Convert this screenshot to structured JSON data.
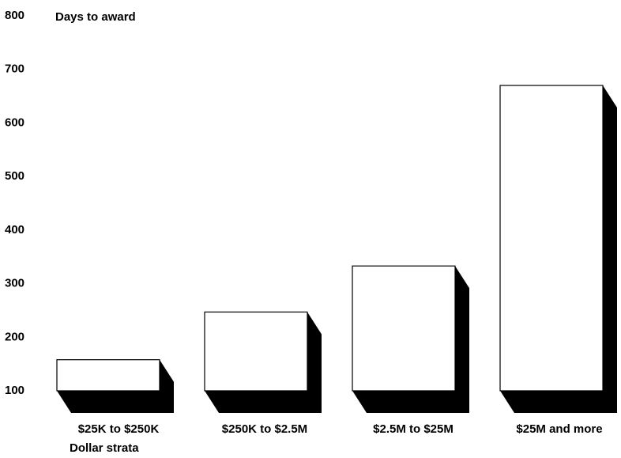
{
  "chart_data": {
    "type": "bar",
    "ylabel": "Days to award",
    "xlabel": "Dollar strata",
    "categories": [
      "$25K to $250K",
      "$250K to $2.5M",
      "$2.5M to $25M",
      "$25M and more"
    ],
    "values": [
      158,
      247,
      333,
      670
    ],
    "ylim": [
      100,
      800
    ],
    "yticks": [
      100,
      200,
      300,
      400,
      500,
      600,
      700,
      800
    ],
    "grid": false,
    "style": "3d-shadow",
    "colors": {
      "bar_fill": "#ffffff",
      "bar_stroke": "#000000",
      "shadow": "#000000"
    }
  }
}
